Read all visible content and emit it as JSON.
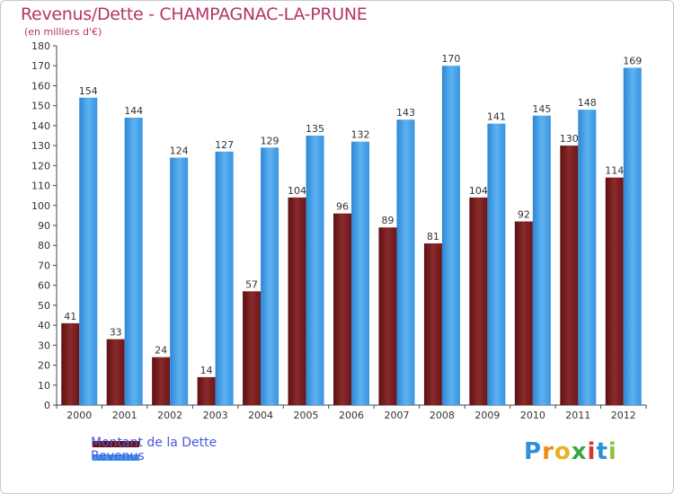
{
  "header": {
    "title": "Revenus/Dette - CHAMPAGNAC-LA-PRUNE",
    "subtitle": "(en milliers d'€)"
  },
  "legend": {
    "debt_label": "Montant de la Dette",
    "revenue_label": "Revenus"
  },
  "logo": {
    "text": "Proxiti"
  },
  "colors": {
    "debt": "#7a1c1e",
    "revenue": "#3d9be3",
    "title": "#b5336a",
    "legend_text": "#4a57e0"
  },
  "chart_data": {
    "type": "bar",
    "title": "Revenus/Dette - CHAMPAGNAC-LA-PRUNE",
    "ylabel": "(en milliers d'€)",
    "xlabel": "",
    "ylim": [
      0,
      180
    ],
    "yticks": [
      0,
      10,
      20,
      30,
      40,
      50,
      60,
      70,
      80,
      90,
      100,
      110,
      120,
      130,
      140,
      150,
      160,
      170,
      180
    ],
    "grid": false,
    "legend_position": "bottom-left",
    "categories": [
      "2000",
      "2001",
      "2002",
      "2003",
      "2004",
      "2005",
      "2006",
      "2007",
      "2008",
      "2009",
      "2010",
      "2011",
      "2012"
    ],
    "series": [
      {
        "name": "Montant de la Dette",
        "values": [
          41,
          33,
          24,
          14,
          57,
          104,
          96,
          89,
          81,
          104,
          92,
          130,
          114
        ]
      },
      {
        "name": "Revenus",
        "values": [
          154,
          144,
          124,
          127,
          129,
          135,
          132,
          143,
          170,
          141,
          145,
          148,
          169
        ]
      }
    ]
  }
}
